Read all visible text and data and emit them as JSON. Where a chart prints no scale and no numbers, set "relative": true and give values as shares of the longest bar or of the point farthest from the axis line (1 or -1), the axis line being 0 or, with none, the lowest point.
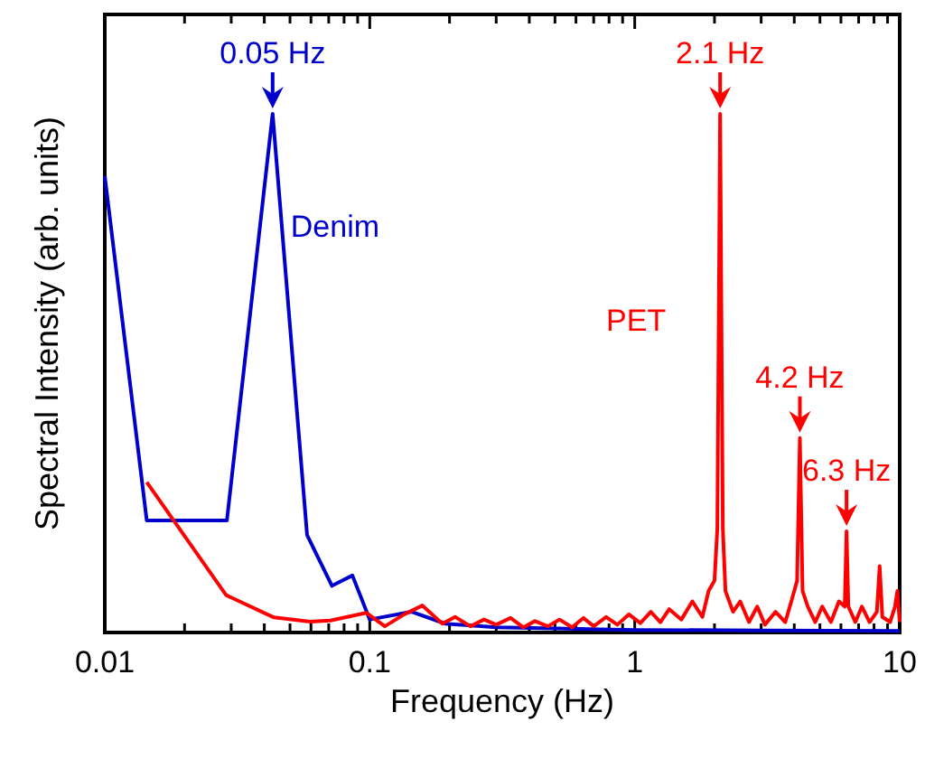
{
  "chart_data": {
    "type": "line",
    "xlabel": "Frequency (Hz)",
    "ylabel": "Spectral Intensity (arb. units)",
    "log": "x",
    "relative": true,
    "xlim": [
      0.01,
      10
    ],
    "xticks": [
      0.01,
      {
        "value": 0.02,
        "label": null
      },
      {
        "value": 0.03,
        "label": null
      },
      {
        "value": 0.04,
        "label": null
      },
      {
        "value": 0.05,
        "label": null
      },
      {
        "value": 0.06,
        "label": null
      },
      {
        "value": 0.07,
        "label": null
      },
      {
        "value": 0.08,
        "label": null
      },
      {
        "value": 0.09,
        "label": null
      },
      0.1,
      {
        "value": 0.2,
        "label": null
      },
      {
        "value": 0.3,
        "label": null
      },
      {
        "value": 0.4,
        "label": null
      },
      {
        "value": 0.5,
        "label": null
      },
      {
        "value": 0.6,
        "label": null
      },
      {
        "value": 0.7,
        "label": null
      },
      {
        "value": 0.8,
        "label": null
      },
      {
        "value": 0.9,
        "label": null
      },
      1,
      {
        "value": 2,
        "label": null
      },
      {
        "value": 3,
        "label": null
      },
      {
        "value": 4,
        "label": null
      },
      {
        "value": 5,
        "label": null
      },
      {
        "value": 6,
        "label": null
      },
      {
        "value": 7,
        "label": null
      },
      {
        "value": 8,
        "label": null
      },
      {
        "value": 9,
        "label": null
      },
      10
    ],
    "series": [
      {
        "name": "Denim",
        "color": "#0000cc",
        "x": [
          0.01,
          0.0144,
          0.0289,
          0.043,
          0.058,
          0.072,
          0.086,
          0.1,
          0.144,
          0.193,
          0.3,
          0.5,
          1,
          3,
          10
        ],
        "values": [
          0.88,
          0.216,
          0.216,
          1,
          0.188,
          0.09,
          0.11,
          0.025,
          0.04,
          0.017,
          0.01,
          0.008,
          0.005,
          0.004,
          0.003
        ]
      },
      {
        "name": "PET",
        "color": "#ff0000",
        "x": [
          0.0144,
          0.0287,
          0.0435,
          0.0596,
          0.071,
          0.097,
          0.114,
          0.135,
          0.158,
          0.188,
          0.21,
          0.24,
          0.27,
          0.3,
          0.34,
          0.38,
          0.42,
          0.47,
          0.52,
          0.58,
          0.64,
          0.7,
          0.78,
          0.86,
          0.95,
          1.05,
          1.15,
          1.25,
          1.35,
          1.5,
          1.65,
          1.8,
          1.9,
          2.0,
          2.05,
          2.1,
          2.15,
          2.2,
          2.35,
          2.5,
          2.7,
          2.9,
          3.1,
          3.4,
          3.7,
          3.9,
          4.1,
          4.2,
          4.3,
          4.5,
          4.8,
          5.1,
          5.5,
          5.9,
          6.2,
          6.3,
          6.4,
          6.8,
          7.2,
          7.7,
          8.2,
          8.4,
          8.6,
          9.2,
          9.6,
          9.8,
          10
        ],
        "values": [
          0.29,
          0.072,
          0.029,
          0.021,
          0.023,
          0.038,
          0.012,
          0.035,
          0.052,
          0.017,
          0.03,
          0.012,
          0.025,
          0.015,
          0.028,
          0.01,
          0.022,
          0.012,
          0.025,
          0.01,
          0.028,
          0.012,
          0.03,
          0.015,
          0.035,
          0.018,
          0.04,
          0.02,
          0.045,
          0.025,
          0.06,
          0.03,
          0.08,
          0.1,
          0.2,
          1,
          0.2,
          0.08,
          0.04,
          0.06,
          0.02,
          0.05,
          0.015,
          0.04,
          0.02,
          0.06,
          0.1,
          0.375,
          0.08,
          0.05,
          0.02,
          0.05,
          0.02,
          0.06,
          0.05,
          0.195,
          0.05,
          0.02,
          0.05,
          0.02,
          0.04,
          0.128,
          0.03,
          0.02,
          0.05,
          0.08,
          0.02
        ]
      }
    ],
    "annotations": [
      {
        "text": "0.05 Hz",
        "x": 0.043,
        "y": 1
      },
      {
        "text": "2.1 Hz",
        "x": 2.1,
        "y": 1
      },
      {
        "text": "4.2 Hz",
        "x": 4.2,
        "y": 0.375
      },
      {
        "text": "6.3 Hz",
        "x": 6.3,
        "y": 0.195
      }
    ]
  }
}
